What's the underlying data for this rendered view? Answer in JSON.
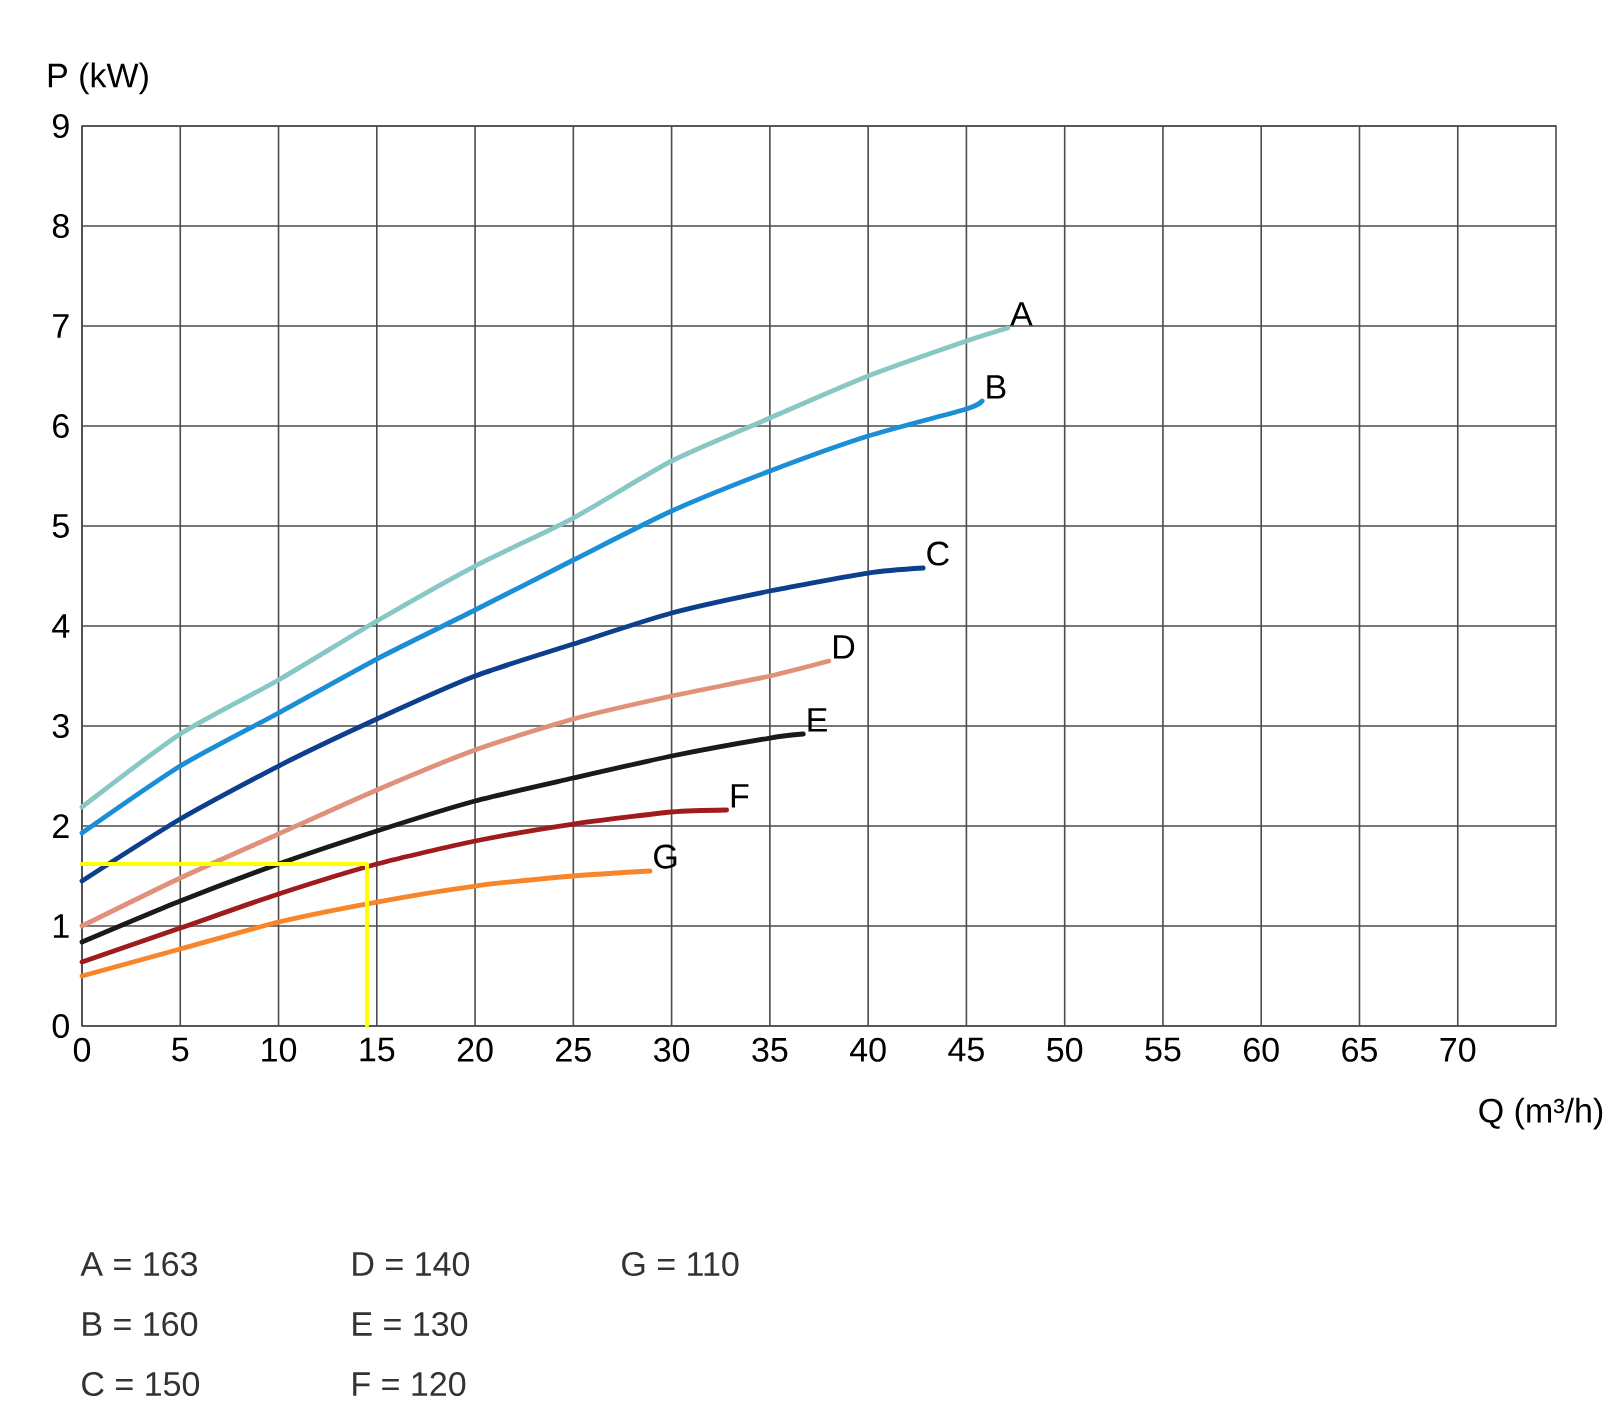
{
  "chart_data": {
    "type": "line",
    "xlabel": "Q (m³/h)",
    "ylabel": "P (kW)",
    "xlim": [
      0,
      75
    ],
    "ylim": [
      0,
      9
    ],
    "xticks": [
      0,
      5,
      10,
      15,
      20,
      25,
      30,
      35,
      40,
      45,
      50,
      55,
      60,
      65,
      70
    ],
    "yticks": [
      0,
      1,
      2,
      3,
      4,
      5,
      6,
      7,
      8,
      9
    ],
    "grid": true,
    "series": [
      {
        "name": "A",
        "color": "#88c8c4",
        "x": [
          0,
          5,
          10,
          15,
          20,
          25,
          30,
          35,
          40,
          45,
          47.1
        ],
        "values": [
          2.19,
          2.92,
          3.46,
          4.05,
          4.6,
          5.08,
          5.65,
          6.08,
          6.5,
          6.85,
          6.98
        ]
      },
      {
        "name": "B",
        "color": "#1a8fd8",
        "x": [
          0,
          5,
          10,
          15,
          20,
          25,
          30,
          35,
          40,
          45,
          45.8
        ],
        "values": [
          1.93,
          2.6,
          3.13,
          3.67,
          4.16,
          4.66,
          5.15,
          5.55,
          5.9,
          6.17,
          6.25
        ]
      },
      {
        "name": "C",
        "color": "#0d3f8c",
        "x": [
          0,
          5,
          10,
          15,
          20,
          25,
          30,
          35,
          40,
          42.8
        ],
        "values": [
          1.45,
          2.07,
          2.6,
          3.07,
          3.5,
          3.82,
          4.13,
          4.35,
          4.53,
          4.58
        ]
      },
      {
        "name": "D",
        "color": "#e0917a",
        "x": [
          0,
          5,
          10,
          15,
          20,
          25,
          30,
          35,
          38
        ],
        "values": [
          1.0,
          1.48,
          1.92,
          2.36,
          2.76,
          3.07,
          3.3,
          3.5,
          3.65
        ]
      },
      {
        "name": "E",
        "color": "#1a1a1a",
        "x": [
          0,
          5,
          10,
          15,
          20,
          25,
          30,
          35,
          36.7
        ],
        "values": [
          0.84,
          1.25,
          1.62,
          1.95,
          2.25,
          2.48,
          2.7,
          2.88,
          2.92
        ]
      },
      {
        "name": "F",
        "color": "#a01c1c",
        "x": [
          0,
          5,
          10,
          15,
          20,
          25,
          30,
          32.8
        ],
        "values": [
          0.64,
          0.98,
          1.32,
          1.62,
          1.85,
          2.02,
          2.14,
          2.16
        ]
      },
      {
        "name": "G",
        "color": "#f7862a",
        "x": [
          0,
          5,
          10,
          15,
          20,
          25,
          28.9
        ],
        "values": [
          0.5,
          0.77,
          1.04,
          1.24,
          1.4,
          1.5,
          1.55
        ]
      },
      {
        "type": "step",
        "color": "#ffff00",
        "x": [
          0,
          14.5,
          14.5
        ],
        "values": [
          1.62,
          1.62,
          0
        ]
      }
    ],
    "annotations": [
      "A = 163",
      "B = 160",
      "C = 150",
      "D = 140",
      "E = 130",
      "F = 120",
      "G = 110"
    ]
  }
}
